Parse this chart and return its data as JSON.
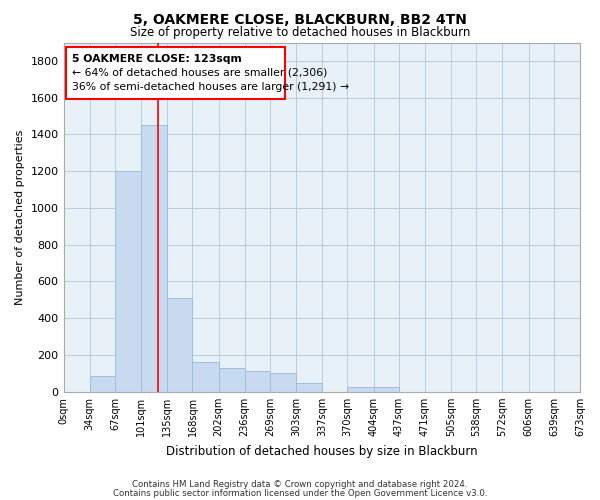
{
  "title": "5, OAKMERE CLOSE, BLACKBURN, BB2 4TN",
  "subtitle": "Size of property relative to detached houses in Blackburn",
  "xlabel": "Distribution of detached houses by size in Blackburn",
  "ylabel": "Number of detached properties",
  "bar_color": "#c8daf0",
  "bar_edge_color": "#a0bedd",
  "annotation_line1": "5 OAKMERE CLOSE: 123sqm",
  "annotation_line2": "← 64% of detached houses are smaller (2,306)",
  "annotation_line3": "36% of semi-detached houses are larger (1,291) →",
  "property_line_x": 123,
  "bin_edges": [
    0,
    34,
    67,
    101,
    135,
    168,
    202,
    236,
    269,
    303,
    337,
    370,
    404,
    437,
    471,
    505,
    538,
    572,
    606,
    639,
    673
  ],
  "bar_heights": [
    0,
    85,
    1200,
    1450,
    510,
    160,
    130,
    115,
    105,
    50,
    0,
    25,
    25,
    0,
    0,
    0,
    0,
    0,
    0,
    0
  ],
  "ylim": [
    0,
    1900
  ],
  "yticks": [
    0,
    200,
    400,
    600,
    800,
    1000,
    1200,
    1400,
    1600,
    1800
  ],
  "xtick_labels": [
    "0sqm",
    "34sqm",
    "67sqm",
    "101sqm",
    "135sqm",
    "168sqm",
    "202sqm",
    "236sqm",
    "269sqm",
    "303sqm",
    "337sqm",
    "370sqm",
    "404sqm",
    "437sqm",
    "471sqm",
    "505sqm",
    "538sqm",
    "572sqm",
    "606sqm",
    "639sqm",
    "673sqm"
  ],
  "footer_line1": "Contains HM Land Registry data © Crown copyright and database right 2024.",
  "footer_line2": "Contains public sector information licensed under the Open Government Licence v3.0.",
  "background_color": "#ffffff",
  "axes_bg_color": "#e8f0f8",
  "grid_color": "#b8ccdf"
}
